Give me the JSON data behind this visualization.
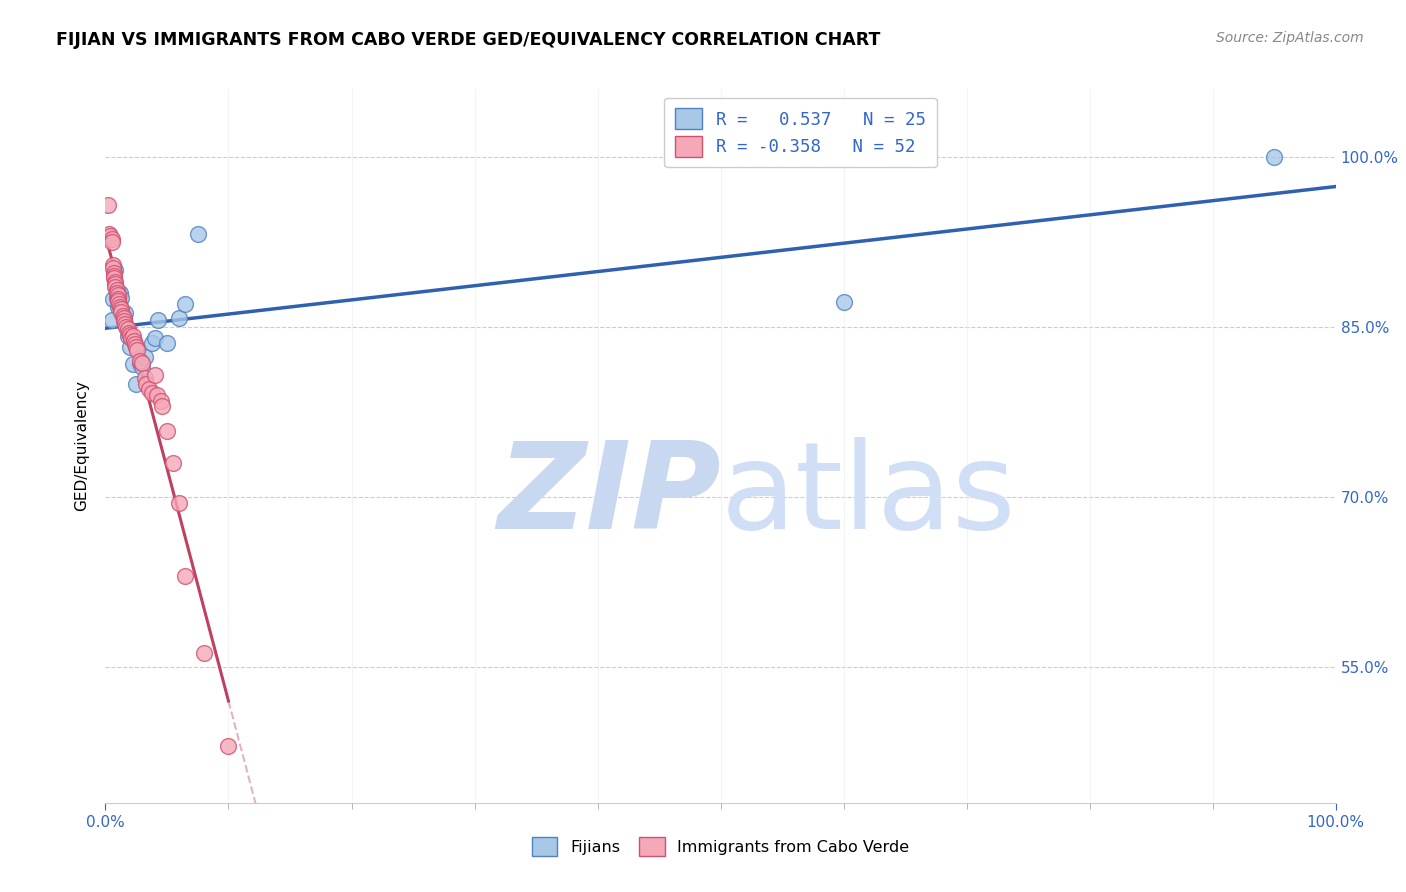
{
  "title": "FIJIAN VS IMMIGRANTS FROM CABO VERDE GED/EQUIVALENCY CORRELATION CHART",
  "source": "Source: ZipAtlas.com",
  "ylabel": "GED/Equivalency",
  "ytick_labels": [
    "55.0%",
    "70.0%",
    "85.0%",
    "100.0%"
  ],
  "ytick_values": [
    0.55,
    0.7,
    0.85,
    1.0
  ],
  "xtick_left": "0.0%",
  "xtick_right": "100.0%",
  "legend_label1": "Fijians",
  "legend_label2": "Immigrants from Cabo Verde",
  "R1": 0.537,
  "N1": 25,
  "R2": -0.358,
  "N2": 52,
  "color_blue_fill": "#A8C8E8",
  "color_pink_fill": "#F4A8B8",
  "color_blue_edge": "#5080C0",
  "color_pink_edge": "#D05070",
  "color_blue_line": "#3060B0",
  "color_pink_line": "#C04060",
  "color_watermark_zip": "#C8D8F0",
  "color_watermark_atlas": "#D0DFF5",
  "fijian_x": [
    0.005,
    0.006,
    0.008,
    0.009,
    0.01,
    0.012,
    0.013,
    0.015,
    0.016,
    0.018,
    0.02,
    0.022,
    0.025,
    0.028,
    0.03,
    0.032,
    0.038,
    0.04,
    0.043,
    0.05,
    0.06,
    0.065,
    0.075,
    0.6,
    0.95
  ],
  "fijian_y": [
    0.856,
    0.875,
    0.9,
    0.876,
    0.868,
    0.88,
    0.876,
    0.857,
    0.862,
    0.842,
    0.832,
    0.817,
    0.8,
    0.818,
    0.815,
    0.824,
    0.836,
    0.84,
    0.856,
    0.836,
    0.858,
    0.87,
    0.932,
    0.872,
    1.0
  ],
  "cabo_x": [
    0.002,
    0.003,
    0.004,
    0.005,
    0.005,
    0.006,
    0.006,
    0.007,
    0.007,
    0.007,
    0.008,
    0.008,
    0.008,
    0.009,
    0.009,
    0.01,
    0.01,
    0.01,
    0.011,
    0.012,
    0.013,
    0.013,
    0.014,
    0.015,
    0.015,
    0.016,
    0.017,
    0.018,
    0.019,
    0.02,
    0.021,
    0.022,
    0.023,
    0.024,
    0.025,
    0.026,
    0.028,
    0.03,
    0.032,
    0.033,
    0.035,
    0.038,
    0.04,
    0.042,
    0.045,
    0.046,
    0.05,
    0.055,
    0.06,
    0.065,
    0.08,
    0.1
  ],
  "cabo_y": [
    0.958,
    0.932,
    0.93,
    0.928,
    0.925,
    0.905,
    0.902,
    0.898,
    0.895,
    0.893,
    0.89,
    0.888,
    0.885,
    0.883,
    0.88,
    0.878,
    0.875,
    0.873,
    0.87,
    0.868,
    0.866,
    0.863,
    0.86,
    0.858,
    0.855,
    0.853,
    0.85,
    0.848,
    0.845,
    0.843,
    0.84,
    0.842,
    0.838,
    0.835,
    0.832,
    0.83,
    0.82,
    0.818,
    0.805,
    0.8,
    0.795,
    0.792,
    0.808,
    0.79,
    0.785,
    0.78,
    0.758,
    0.73,
    0.695,
    0.63,
    0.562,
    0.48
  ]
}
